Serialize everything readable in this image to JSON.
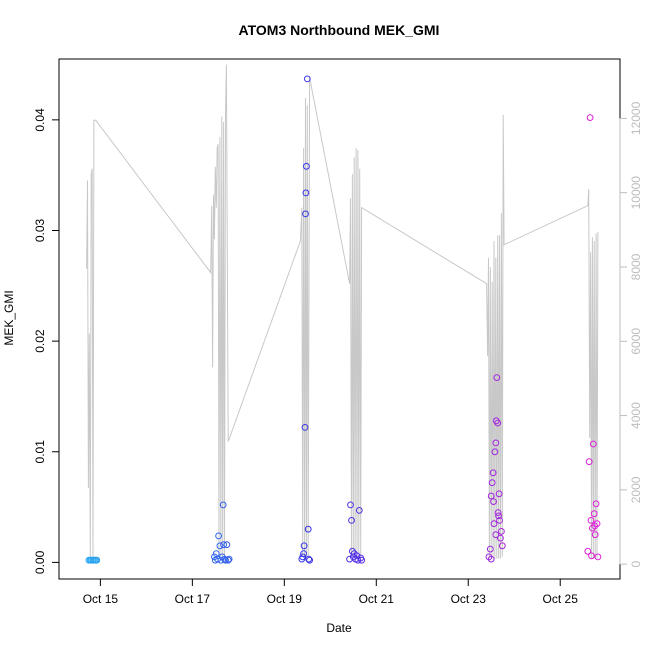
{
  "chart_data": {
    "type": "scatter",
    "title": "ATOM3 Northbound MEK_GMI",
    "xlabel": "Date",
    "ylabel": "MEK_GMI",
    "x_ticks": [
      "Oct 15",
      "Oct 17",
      "Oct 19",
      "Oct 21",
      "Oct 23",
      "Oct 25"
    ],
    "x_tick_days": [
      15,
      17,
      19,
      21,
      23,
      25
    ],
    "xlim_days": [
      14.1,
      26.3
    ],
    "ylim": [
      -0.0015,
      0.0455
    ],
    "y_ticks": [
      0.0,
      0.01,
      0.02,
      0.03,
      0.04
    ],
    "y_tick_labels": [
      "0.00",
      "0.01",
      "0.02",
      "0.03",
      "0.04"
    ],
    "y2lim": [
      -400,
      13600
    ],
    "y2_ticks": [
      0,
      2000,
      4000,
      6000,
      8000,
      10000,
      12000
    ],
    "y2_tick_labels": [
      "0",
      "2000",
      "4000",
      "6000",
      "8000",
      "10000",
      "12000"
    ],
    "legend": "none",
    "grid": false,
    "colors": {
      "altitude_line": "#c8c8c8",
      "early": "#2aa9f0",
      "mid": "#3a30e8",
      "late": "#e020d8",
      "axis": "#000000",
      "right_axis": "#bdbdbd"
    },
    "series": [
      {
        "values": [
          [
            14.75,
            0.0002
          ],
          [
            14.78,
            0.0002
          ],
          [
            14.8,
            0.0002
          ],
          [
            14.83,
            0.0002
          ],
          [
            14.85,
            0.0002
          ],
          [
            14.88,
            0.0002
          ],
          [
            14.9,
            0.0002
          ],
          [
            14.92,
            0.0002
          ],
          [
            17.48,
            0.0005
          ],
          [
            17.5,
            0.0002
          ],
          [
            17.52,
            0.0008
          ],
          [
            17.55,
            0.0003
          ],
          [
            17.57,
            0.0024
          ],
          [
            17.6,
            0.0015
          ],
          [
            17.62,
            0.0002
          ],
          [
            17.65,
            0.0005
          ],
          [
            17.67,
            0.0052
          ],
          [
            17.68,
            0.0016
          ],
          [
            17.7,
            0.0003
          ],
          [
            17.72,
            0.0002
          ],
          [
            17.75,
            0.0016
          ],
          [
            17.78,
            0.0002
          ],
          [
            17.8,
            0.0003
          ],
          [
            19.38,
            0.0003
          ],
          [
            19.4,
            0.0005
          ],
          [
            19.42,
            0.0008
          ],
          [
            19.43,
            0.0015
          ],
          [
            19.45,
            0.0122
          ],
          [
            19.46,
            0.0315
          ],
          [
            19.47,
            0.0334
          ],
          [
            19.48,
            0.0358
          ],
          [
            19.5,
            0.0437
          ],
          [
            19.52,
            0.003
          ],
          [
            19.53,
            0.0003
          ],
          [
            19.55,
            0.0002
          ],
          [
            20.42,
            0.0003
          ],
          [
            20.44,
            0.0052
          ],
          [
            20.46,
            0.0038
          ],
          [
            20.48,
            0.001
          ],
          [
            20.5,
            0.0005
          ],
          [
            20.52,
            0.0008
          ],
          [
            20.55,
            0.0003
          ],
          [
            20.58,
            0.0006
          ],
          [
            20.6,
            0.0002
          ],
          [
            20.63,
            0.0047
          ],
          [
            20.66,
            0.0004
          ],
          [
            20.68,
            0.0002
          ],
          [
            23.45,
            0.0005
          ],
          [
            23.48,
            0.0012
          ],
          [
            23.5,
            0.006
          ],
          [
            23.52,
            0.0072
          ],
          [
            23.54,
            0.0081
          ],
          [
            23.56,
            0.0035
          ],
          [
            23.58,
            0.01
          ],
          [
            23.6,
            0.0108
          ],
          [
            23.61,
            0.0128
          ],
          [
            23.62,
            0.0167
          ],
          [
            23.64,
            0.0126
          ],
          [
            23.65,
            0.0045
          ],
          [
            23.67,
            0.0062
          ],
          [
            23.68,
            0.0038
          ],
          [
            23.7,
            0.0022
          ],
          [
            23.72,
            0.0028
          ],
          [
            23.74,
            0.0015
          ],
          [
            23.5,
            0.0003
          ],
          [
            23.55,
            0.0055
          ],
          [
            23.6,
            0.0025
          ],
          [
            23.66,
            0.0042
          ],
          [
            25.6,
            0.001
          ],
          [
            25.63,
            0.0091
          ],
          [
            25.65,
            0.0402
          ],
          [
            25.67,
            0.0038
          ],
          [
            25.7,
            0.0031
          ],
          [
            25.72,
            0.0107
          ],
          [
            25.74,
            0.0044
          ],
          [
            25.76,
            0.0025
          ],
          [
            25.78,
            0.0053
          ],
          [
            25.8,
            0.0035
          ],
          [
            25.82,
            0.0005
          ],
          [
            25.68,
            0.0006
          ],
          [
            25.75,
            0.0033
          ]
        ]
      }
    ],
    "altitude_series": [
      [
        14.7,
        7950
      ],
      [
        14.72,
        10330
      ],
      [
        14.74,
        2050
      ],
      [
        14.76,
        6210
      ],
      [
        14.78,
        180
      ],
      [
        14.8,
        10500
      ],
      [
        14.82,
        10650
      ],
      [
        14.84,
        160
      ],
      [
        14.86,
        11950
      ],
      [
        14.9,
        11950
      ],
      [
        17.4,
        7850
      ],
      [
        17.42,
        9650
      ],
      [
        17.44,
        5300
      ],
      [
        17.46,
        9950
      ],
      [
        17.48,
        8750
      ],
      [
        17.5,
        10700
      ],
      [
        17.52,
        9600
      ],
      [
        17.54,
        11200
      ],
      [
        17.56,
        11300
      ],
      [
        17.58,
        200
      ],
      [
        17.6,
        11500
      ],
      [
        17.62,
        200
      ],
      [
        17.64,
        12050
      ],
      [
        17.66,
        200
      ],
      [
        17.68,
        11900
      ],
      [
        17.7,
        200
      ],
      [
        17.72,
        12150
      ],
      [
        17.74,
        13450
      ],
      [
        17.78,
        3300
      ],
      [
        19.35,
        8700
      ],
      [
        19.38,
        9600
      ],
      [
        19.4,
        200
      ],
      [
        19.42,
        11200
      ],
      [
        19.44,
        200
      ],
      [
        19.46,
        12550
      ],
      [
        19.48,
        200
      ],
      [
        19.5,
        12350
      ],
      [
        19.52,
        200
      ],
      [
        19.55,
        13100
      ],
      [
        20.42,
        7550
      ],
      [
        20.44,
        9850
      ],
      [
        20.46,
        200
      ],
      [
        20.48,
        10500
      ],
      [
        20.5,
        200
      ],
      [
        20.52,
        10950
      ],
      [
        20.54,
        200
      ],
      [
        20.56,
        11200
      ],
      [
        20.58,
        200
      ],
      [
        20.6,
        11150
      ],
      [
        20.62,
        200
      ],
      [
        20.64,
        10650
      ],
      [
        20.66,
        200
      ],
      [
        20.68,
        9600
      ],
      [
        23.4,
        7550
      ],
      [
        23.42,
        5600
      ],
      [
        23.44,
        8250
      ],
      [
        23.46,
        150
      ],
      [
        23.48,
        8000
      ],
      [
        23.5,
        150
      ],
      [
        23.52,
        7600
      ],
      [
        23.54,
        150
      ],
      [
        23.56,
        8700
      ],
      [
        23.58,
        150
      ],
      [
        23.6,
        8250
      ],
      [
        23.62,
        150
      ],
      [
        23.64,
        8850
      ],
      [
        23.66,
        150
      ],
      [
        23.68,
        8850
      ],
      [
        23.7,
        150
      ],
      [
        23.72,
        9450
      ],
      [
        23.74,
        200
      ],
      [
        23.76,
        12100
      ],
      [
        23.78,
        8600
      ],
      [
        25.6,
        9650
      ],
      [
        25.62,
        10100
      ],
      [
        25.64,
        3400
      ],
      [
        25.66,
        8400
      ],
      [
        25.68,
        150
      ],
      [
        25.7,
        8800
      ],
      [
        25.72,
        150
      ],
      [
        25.74,
        8700
      ],
      [
        25.76,
        150
      ],
      [
        25.78,
        8900
      ],
      [
        25.8,
        150
      ],
      [
        25.82,
        8950
      ]
    ]
  }
}
